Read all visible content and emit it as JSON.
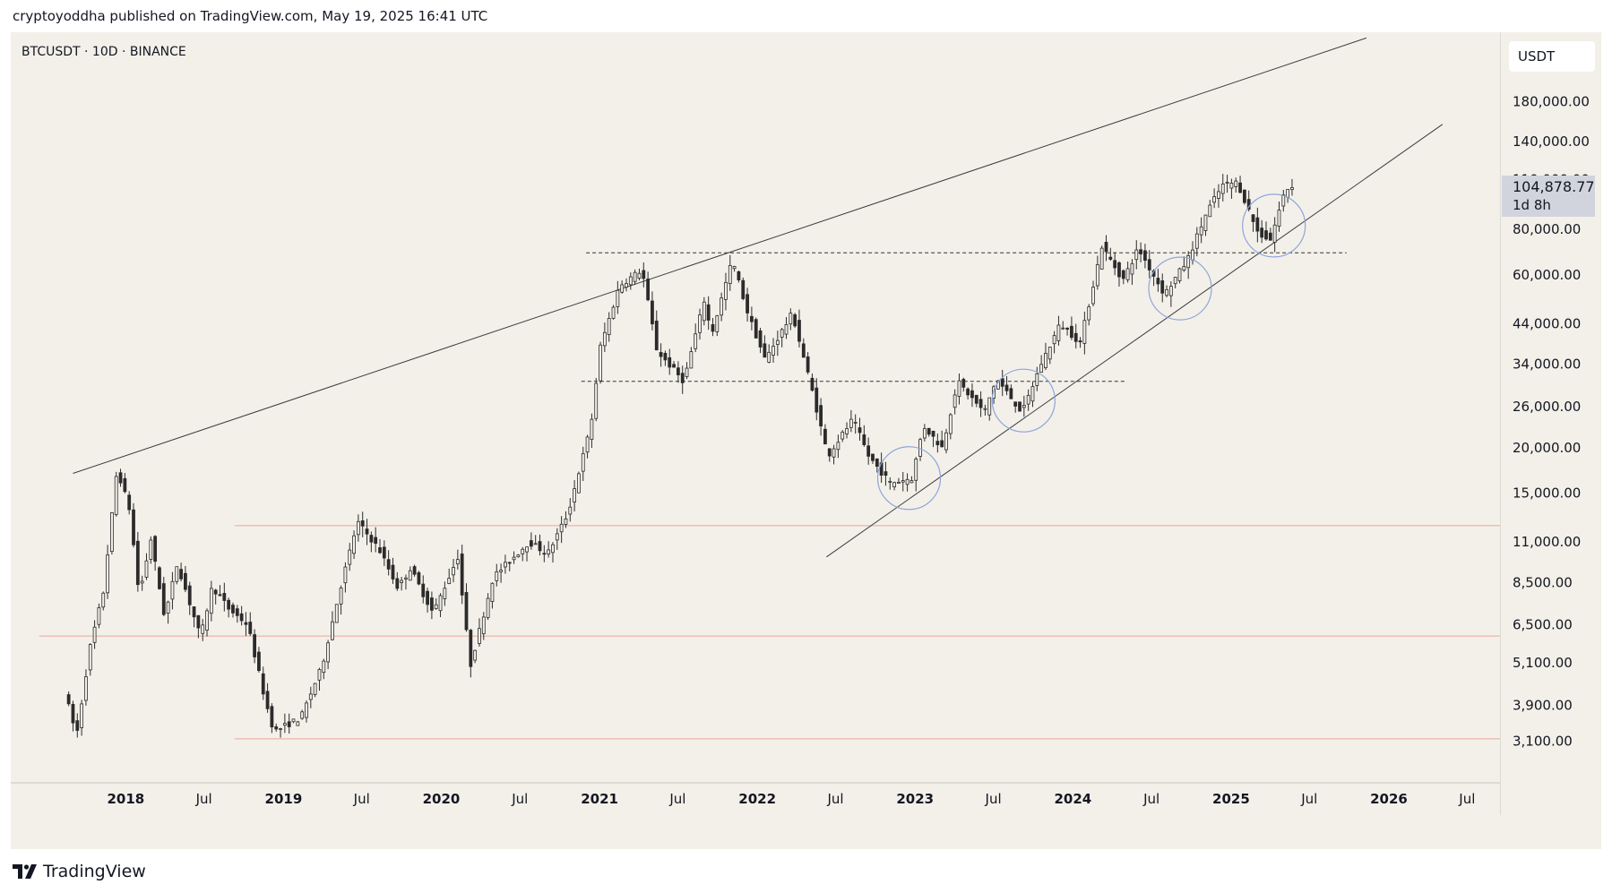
{
  "header": {
    "text": "cryptoyoddha published on TradingView.com, May 19, 2025 16:41 UTC"
  },
  "symbol": {
    "label": "BTCUSDT · 10D · BINANCE"
  },
  "currency": "USDT",
  "last_price": {
    "value": "104,878.77",
    "countdown": "1d 8h"
  },
  "footer": {
    "brand": "TradingView",
    "logo_icon": "tradingview-logo-icon"
  },
  "colors": {
    "background": "#f3f0e9",
    "candle_body": "#2b2b2b",
    "horizontal_level": "#e8a79e",
    "circle": "#8ea5dc",
    "trendline": "#3c3c3c"
  },
  "chart_data": {
    "type": "candlestick",
    "log_scale": true,
    "grid": false,
    "ylim": [
      2700,
      280000
    ],
    "xlim": [
      "2017-04-10",
      "2026-09-15"
    ],
    "x_ticks": [
      {
        "date": "2018-01-01",
        "label": "2018"
      },
      {
        "date": "2018-07-01",
        "label": "Jul"
      },
      {
        "date": "2019-01-01",
        "label": "2019"
      },
      {
        "date": "2019-07-01",
        "label": "Jul"
      },
      {
        "date": "2020-01-01",
        "label": "2020"
      },
      {
        "date": "2020-07-01",
        "label": "Jul"
      },
      {
        "date": "2021-01-01",
        "label": "2021"
      },
      {
        "date": "2021-07-01",
        "label": "Jul"
      },
      {
        "date": "2022-01-01",
        "label": "2022"
      },
      {
        "date": "2022-07-01",
        "label": "Jul"
      },
      {
        "date": "2023-01-01",
        "label": "2023"
      },
      {
        "date": "2023-07-01",
        "label": "Jul"
      },
      {
        "date": "2024-01-01",
        "label": "2024"
      },
      {
        "date": "2024-07-01",
        "label": "Jul"
      },
      {
        "date": "2025-01-01",
        "label": "2025"
      },
      {
        "date": "2025-07-01",
        "label": "Jul"
      },
      {
        "date": "2026-01-01",
        "label": "2026"
      },
      {
        "date": "2026-07-01",
        "label": "Jul"
      }
    ],
    "y_ticks": [
      {
        "value": 180000,
        "label": "180,000.00"
      },
      {
        "value": 140000,
        "label": "140,000.00"
      },
      {
        "value": 110000,
        "label": "110,000.00"
      },
      {
        "value": 80000,
        "label": "80,000.00"
      },
      {
        "value": 60000,
        "label": "60,000.00"
      },
      {
        "value": 44000,
        "label": "44,000.00"
      },
      {
        "value": 34000,
        "label": "34,000.00"
      },
      {
        "value": 26000,
        "label": "26,000.00"
      },
      {
        "value": 20000,
        "label": "20,000.00"
      },
      {
        "value": 15000,
        "label": "15,000.00"
      },
      {
        "value": 11000,
        "label": "11,000.00"
      },
      {
        "value": 8500,
        "label": "8,500.00"
      },
      {
        "value": 6500,
        "label": "6,500.00"
      },
      {
        "value": 5100,
        "label": "5,100.00"
      },
      {
        "value": 3900,
        "label": "3,900.00"
      },
      {
        "value": 3100,
        "label": "3,100.00"
      }
    ],
    "price_path": [
      [
        "2017-08-17",
        4300
      ],
      [
        "2017-09-14",
        3200
      ],
      [
        "2017-10-15",
        5600
      ],
      [
        "2017-11-15",
        8000
      ],
      [
        "2017-12-17",
        17500
      ],
      [
        "2018-01-15",
        13500
      ],
      [
        "2018-02-06",
        7800
      ],
      [
        "2018-03-05",
        11200
      ],
      [
        "2018-04-06",
        6800
      ],
      [
        "2018-05-05",
        9600
      ],
      [
        "2018-06-28",
        6000
      ],
      [
        "2018-07-25",
        8300
      ],
      [
        "2018-09-01",
        7200
      ],
      [
        "2018-10-15",
        6500
      ],
      [
        "2018-11-25",
        4000
      ],
      [
        "2018-12-15",
        3300
      ],
      [
        "2019-02-15",
        3600
      ],
      [
        "2019-04-05",
        5000
      ],
      [
        "2019-05-15",
        8000
      ],
      [
        "2019-06-26",
        12500
      ],
      [
        "2019-08-15",
        10500
      ],
      [
        "2019-09-28",
        8200
      ],
      [
        "2019-10-26",
        9300
      ],
      [
        "2019-12-18",
        7000
      ],
      [
        "2020-02-13",
        10000
      ],
      [
        "2020-03-13",
        5000
      ],
      [
        "2020-05-05",
        8800
      ],
      [
        "2020-07-27",
        11000
      ],
      [
        "2020-09-08",
        10200
      ],
      [
        "2020-10-25",
        13200
      ],
      [
        "2020-12-17",
        23000
      ],
      [
        "2021-01-08",
        38000
      ],
      [
        "2021-02-21",
        56000
      ],
      [
        "2021-04-14",
        62000
      ],
      [
        "2021-05-19",
        37000
      ],
      [
        "2021-07-20",
        30500
      ],
      [
        "2021-09-05",
        51000
      ],
      [
        "2021-09-22",
        41000
      ],
      [
        "2021-11-09",
        66000
      ],
      [
        "2021-12-15",
        47000
      ],
      [
        "2022-01-24",
        35000
      ],
      [
        "2022-03-28",
        47000
      ],
      [
        "2022-05-12",
        29000
      ],
      [
        "2022-06-18",
        19000
      ],
      [
        "2022-08-15",
        24000
      ],
      [
        "2022-09-20",
        19000
      ],
      [
        "2022-11-09",
        16000
      ],
      [
        "2022-12-30",
        16500
      ],
      [
        "2023-01-25",
        23000
      ],
      [
        "2023-03-10",
        20000
      ],
      [
        "2023-04-14",
        30500
      ],
      [
        "2023-06-15",
        25000
      ],
      [
        "2023-07-13",
        31000
      ],
      [
        "2023-09-11",
        25000
      ],
      [
        "2023-10-24",
        34000
      ],
      [
        "2023-12-08",
        44000
      ],
      [
        "2024-01-23",
        39000
      ],
      [
        "2024-03-13",
        72000
      ],
      [
        "2024-05-01",
        58000
      ],
      [
        "2024-06-05",
        71000
      ],
      [
        "2024-08-05",
        53000
      ],
      [
        "2024-09-27",
        66000
      ],
      [
        "2024-11-12",
        90000
      ],
      [
        "2024-12-17",
        106000
      ],
      [
        "2025-01-20",
        108000
      ],
      [
        "2025-03-10",
        78000
      ],
      [
        "2025-04-07",
        75000
      ],
      [
        "2025-05-08",
        100000
      ],
      [
        "2025-05-19",
        104878.77
      ]
    ],
    "horizontal_levels": [
      {
        "value": 12200,
        "from": "2018-09-10",
        "to": "2026-09-15",
        "style": "solid",
        "color": "#e8a79e"
      },
      {
        "value": 6050,
        "from": "2017-06-15",
        "to": "2026-09-15",
        "style": "solid",
        "color": "#e8a79e"
      },
      {
        "value": 3150,
        "from": "2018-09-10",
        "to": "2026-09-15",
        "style": "solid",
        "color": "#e8a79e"
      },
      {
        "value": 69000,
        "from": "2020-12-01",
        "to": "2025-09-25",
        "style": "dashed",
        "color": "#333333"
      },
      {
        "value": 30500,
        "from": "2020-11-20",
        "to": "2024-05-05",
        "style": "dashed",
        "color": "#333333"
      }
    ],
    "trendlines": [
      {
        "from": [
          "2017-09-01",
          17000
        ],
        "to": [
          "2025-11-10",
          270000
        ]
      },
      {
        "from": [
          "2022-06-10",
          10000
        ],
        "to": [
          "2026-05-05",
          156000
        ]
      }
    ],
    "circles": [
      {
        "date": "2022-12-18",
        "value": 16500,
        "color": "#8ea5dc"
      },
      {
        "date": "2023-09-09",
        "value": 27000,
        "color": "#8ea5dc"
      },
      {
        "date": "2024-09-05",
        "value": 55000,
        "color": "#8ea5dc"
      },
      {
        "date": "2025-04-10",
        "value": 82000,
        "color": "#8ea5dc"
      }
    ]
  }
}
